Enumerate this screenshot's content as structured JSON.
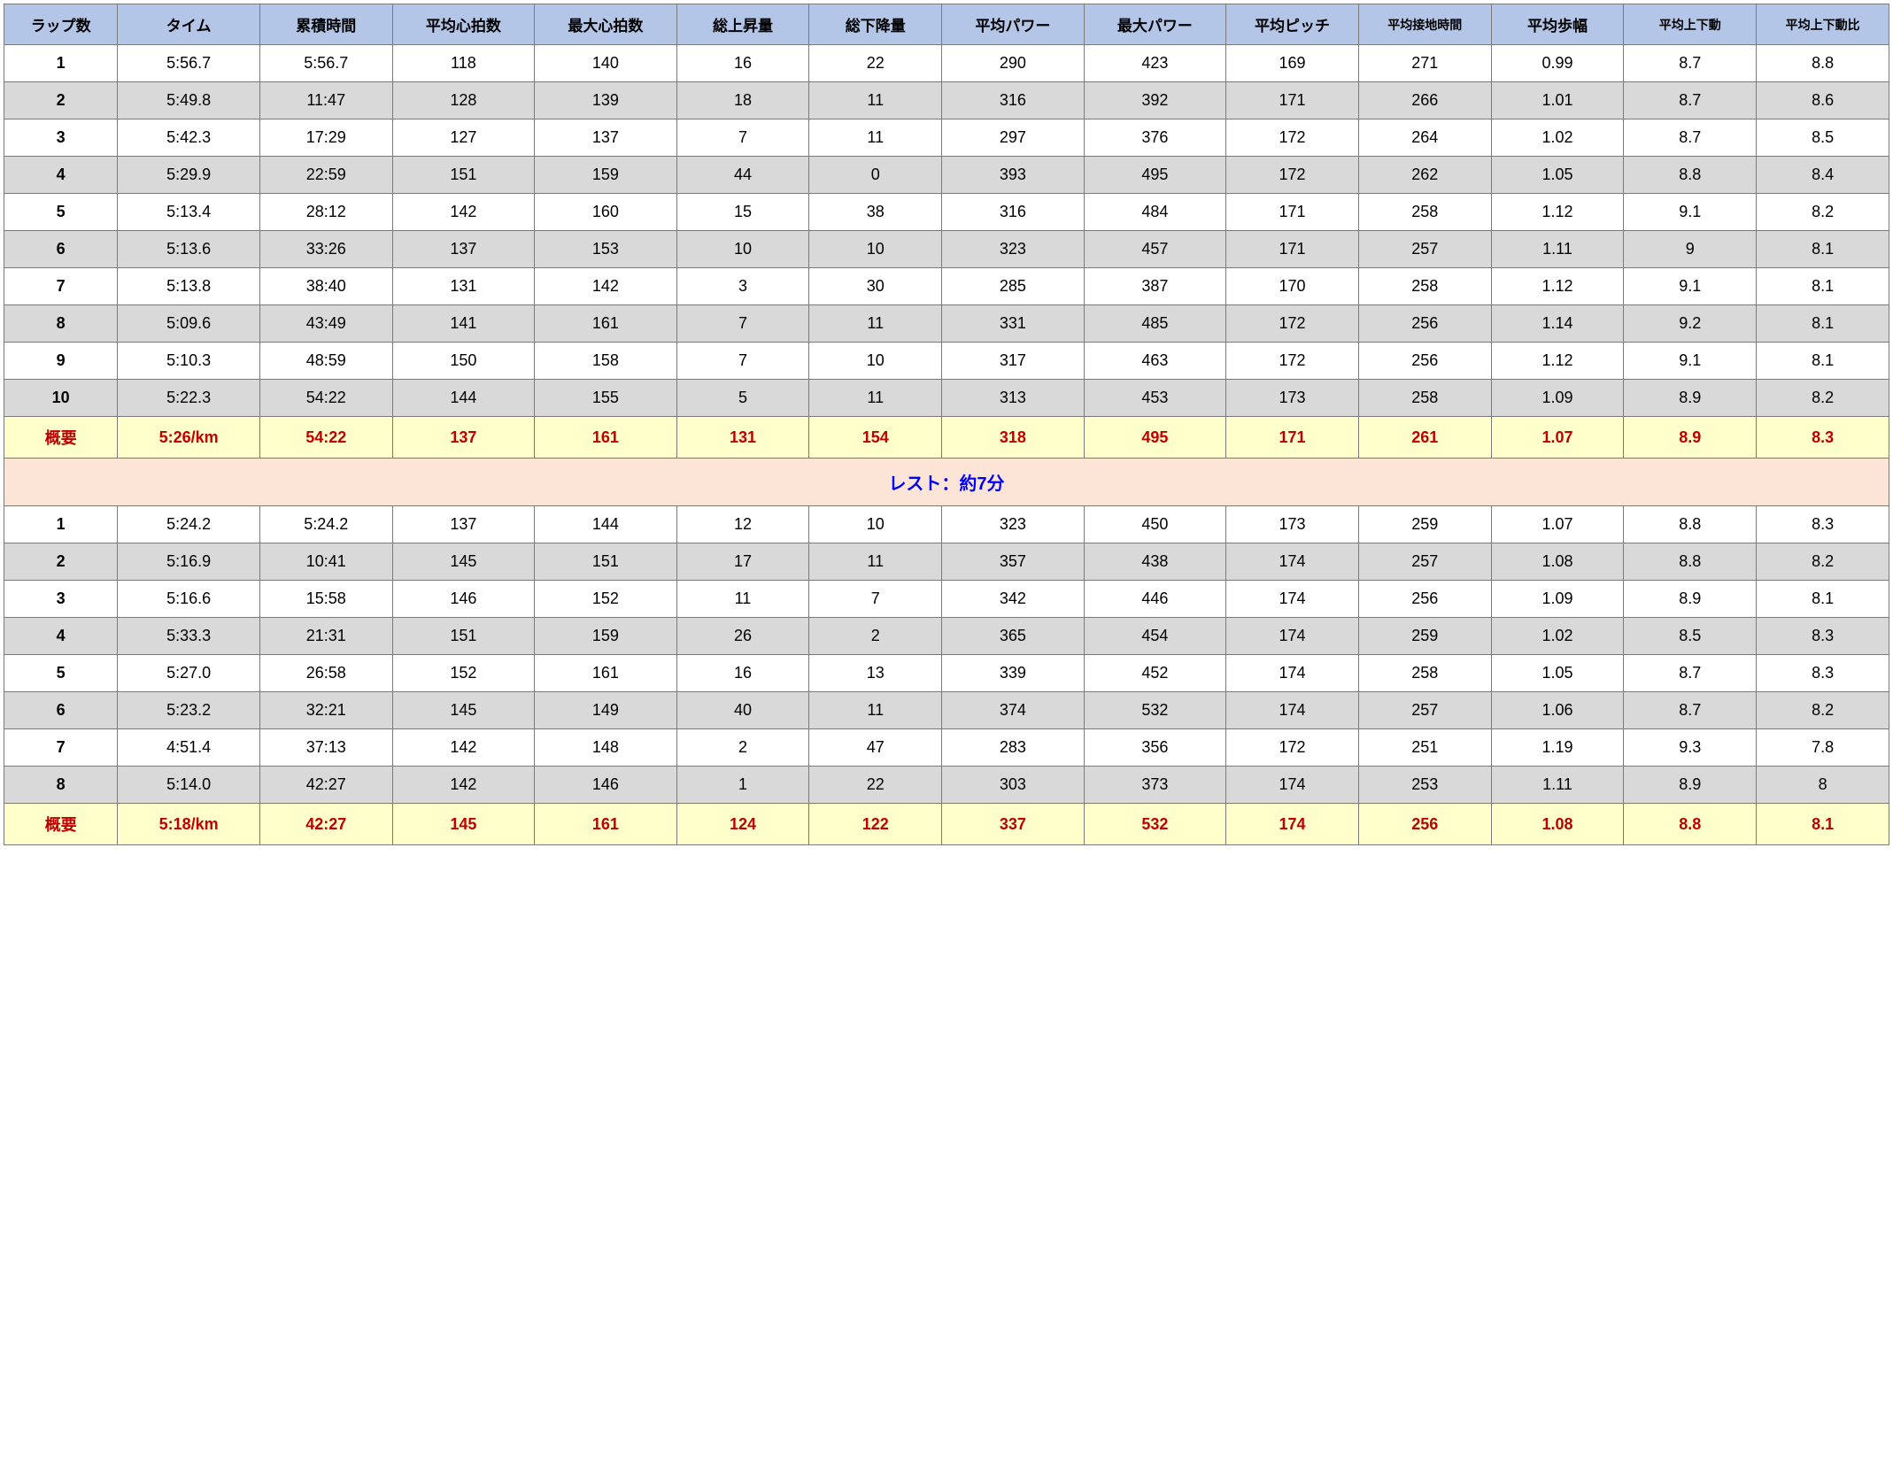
{
  "columns": [
    {
      "label": "ラップ数",
      "small": false
    },
    {
      "label": "タイム",
      "small": false
    },
    {
      "label": "累積時間",
      "small": false
    },
    {
      "label": "平均心拍数",
      "small": false
    },
    {
      "label": "最大心拍数",
      "small": false
    },
    {
      "label": "総上昇量",
      "small": false
    },
    {
      "label": "総下降量",
      "small": false
    },
    {
      "label": "平均パワー",
      "small": false
    },
    {
      "label": "最大パワー",
      "small": false
    },
    {
      "label": "平均ピッチ",
      "small": false
    },
    {
      "label": "平均接地時間",
      "small": true
    },
    {
      "label": "平均歩幅",
      "small": false
    },
    {
      "label": "平均上下動",
      "small": true
    },
    {
      "label": "平均上下動比",
      "small": true
    }
  ],
  "set1": {
    "rows": [
      [
        "1",
        "5:56.7",
        "5:56.7",
        "118",
        "140",
        "16",
        "22",
        "290",
        "423",
        "169",
        "271",
        "0.99",
        "8.7",
        "8.8"
      ],
      [
        "2",
        "5:49.8",
        "11:47",
        "128",
        "139",
        "18",
        "11",
        "316",
        "392",
        "171",
        "266",
        "1.01",
        "8.7",
        "8.6"
      ],
      [
        "3",
        "5:42.3",
        "17:29",
        "127",
        "137",
        "7",
        "11",
        "297",
        "376",
        "172",
        "264",
        "1.02",
        "8.7",
        "8.5"
      ],
      [
        "4",
        "5:29.9",
        "22:59",
        "151",
        "159",
        "44",
        "0",
        "393",
        "495",
        "172",
        "262",
        "1.05",
        "8.8",
        "8.4"
      ],
      [
        "5",
        "5:13.4",
        "28:12",
        "142",
        "160",
        "15",
        "38",
        "316",
        "484",
        "171",
        "258",
        "1.12",
        "9.1",
        "8.2"
      ],
      [
        "6",
        "5:13.6",
        "33:26",
        "137",
        "153",
        "10",
        "10",
        "323",
        "457",
        "171",
        "257",
        "1.11",
        "9",
        "8.1"
      ],
      [
        "7",
        "5:13.8",
        "38:40",
        "131",
        "142",
        "3",
        "30",
        "285",
        "387",
        "170",
        "258",
        "1.12",
        "9.1",
        "8.1"
      ],
      [
        "8",
        "5:09.6",
        "43:49",
        "141",
        "161",
        "7",
        "11",
        "331",
        "485",
        "172",
        "256",
        "1.14",
        "9.2",
        "8.1"
      ],
      [
        "9",
        "5:10.3",
        "48:59",
        "150",
        "158",
        "7",
        "10",
        "317",
        "463",
        "172",
        "256",
        "1.12",
        "9.1",
        "8.1"
      ],
      [
        "10",
        "5:22.3",
        "54:22",
        "144",
        "155",
        "5",
        "11",
        "313",
        "453",
        "173",
        "258",
        "1.09",
        "8.9",
        "8.2"
      ]
    ],
    "summary": [
      "概要",
      "5:26/km",
      "54:22",
      "137",
      "161",
      "131",
      "154",
      "318",
      "495",
      "171",
      "261",
      "1.07",
      "8.9",
      "8.3"
    ]
  },
  "rest_label": "レスト：約7分",
  "set2": {
    "rows": [
      [
        "1",
        "5:24.2",
        "5:24.2",
        "137",
        "144",
        "12",
        "10",
        "323",
        "450",
        "173",
        "259",
        "1.07",
        "8.8",
        "8.3"
      ],
      [
        "2",
        "5:16.9",
        "10:41",
        "145",
        "151",
        "17",
        "11",
        "357",
        "438",
        "174",
        "257",
        "1.08",
        "8.8",
        "8.2"
      ],
      [
        "3",
        "5:16.6",
        "15:58",
        "146",
        "152",
        "11",
        "7",
        "342",
        "446",
        "174",
        "256",
        "1.09",
        "8.9",
        "8.1"
      ],
      [
        "4",
        "5:33.3",
        "21:31",
        "151",
        "159",
        "26",
        "2",
        "365",
        "454",
        "174",
        "259",
        "1.02",
        "8.5",
        "8.3"
      ],
      [
        "5",
        "5:27.0",
        "26:58",
        "152",
        "161",
        "16",
        "13",
        "339",
        "452",
        "174",
        "258",
        "1.05",
        "8.7",
        "8.3"
      ],
      [
        "6",
        "5:23.2",
        "32:21",
        "145",
        "149",
        "40",
        "11",
        "374",
        "532",
        "174",
        "257",
        "1.06",
        "8.7",
        "8.2"
      ],
      [
        "7",
        "4:51.4",
        "37:13",
        "142",
        "148",
        "2",
        "47",
        "283",
        "356",
        "172",
        "251",
        "1.19",
        "9.3",
        "7.8"
      ],
      [
        "8",
        "5:14.0",
        "42:27",
        "142",
        "146",
        "1",
        "22",
        "303",
        "373",
        "174",
        "253",
        "1.11",
        "8.9",
        "8"
      ]
    ],
    "summary": [
      "概要",
      "5:18/km",
      "42:27",
      "145",
      "161",
      "124",
      "122",
      "337",
      "532",
      "174",
      "256",
      "1.08",
      "8.8",
      "8.1"
    ]
  },
  "styling": {
    "header_bg": "#b4c6e7",
    "even_row_bg": "#d9d9d9",
    "odd_row_bg": "#ffffff",
    "summary_bg": "#ffffcc",
    "summary_color": "#c00000",
    "rest_bg": "#fce4d6",
    "rest_color": "#0000ff",
    "border_color": "#7a7a7a"
  }
}
